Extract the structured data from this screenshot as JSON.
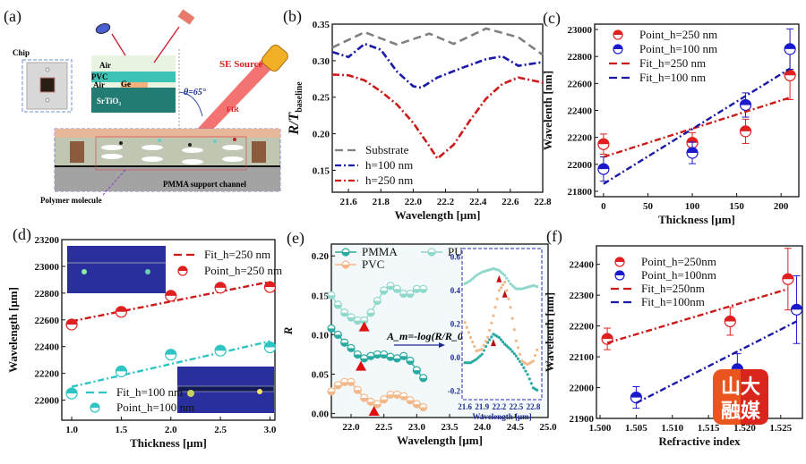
{
  "figure": {
    "panel_labels": [
      "(a)",
      "(b)",
      "(c)",
      "(d)",
      "(e)",
      "(f)"
    ],
    "watermark": {
      "line1": "山大",
      "line2": "融媒",
      "colors": {
        "orange": "#f07c1d",
        "red": "#d9251c"
      }
    }
  },
  "schematic": {
    "chip_label": "Chip",
    "layers": [
      "Air",
      "PVC",
      "Air",
      "Ge",
      "SrTiO₃"
    ],
    "source_label": "SE Source",
    "beam_label": "FIR",
    "angle_label": "θ=65°",
    "channel_label": "PMMA support channel",
    "molecule_label": "Polymer molecule"
  },
  "chart_data": [
    {
      "id": "b",
      "type": "line",
      "title": "",
      "xlabel": "Wavelength [μm]",
      "ylabel": "R/T_baseline",
      "ylabel_main": "R/T",
      "ylabel_sub": "baseline",
      "xlim": [
        21.5,
        22.8
      ],
      "ylim": [
        0.12,
        0.35
      ],
      "xticks": [
        "21.6",
        "21.8",
        "22.0",
        "22.2",
        "22.4",
        "22.6",
        "22.8"
      ],
      "yticks": [
        "0.15",
        "0.20",
        "0.25",
        "0.30",
        "0.35"
      ],
      "legend": "bottom-left",
      "series": [
        {
          "name": "Substrate",
          "color": "#808080",
          "dash": "dash",
          "x": [
            21.5,
            21.7,
            21.9,
            22.1,
            22.25,
            22.45,
            22.65,
            22.8
          ],
          "y": [
            0.318,
            0.339,
            0.322,
            0.337,
            0.323,
            0.344,
            0.332,
            0.308
          ]
        },
        {
          "name": "h=100 nm",
          "color": "#1a1aa6",
          "dash": "dashdot",
          "x": [
            21.5,
            21.6,
            21.7,
            21.8,
            21.9,
            22.0,
            22.05,
            22.15,
            22.3,
            22.45,
            22.55,
            22.65,
            22.8
          ],
          "y": [
            0.312,
            0.305,
            0.323,
            0.315,
            0.285,
            0.265,
            0.263,
            0.277,
            0.29,
            0.302,
            0.306,
            0.293,
            0.298
          ]
        },
        {
          "name": "h=250 nm",
          "color": "#cc1a1a",
          "dash": "dashdot",
          "x": [
            21.5,
            21.6,
            21.7,
            21.8,
            21.9,
            22.0,
            22.1,
            22.15,
            22.25,
            22.35,
            22.45,
            22.55,
            22.65,
            22.8
          ],
          "y": [
            0.281,
            0.28,
            0.273,
            0.258,
            0.24,
            0.215,
            0.183,
            0.166,
            0.185,
            0.218,
            0.248,
            0.268,
            0.277,
            0.27
          ]
        }
      ]
    },
    {
      "id": "c",
      "type": "scatter",
      "title": "",
      "xlabel": "Thickness [μm]",
      "ylabel": "Wavelenth [nm]",
      "xlim": [
        -10,
        220
      ],
      "ylim": [
        21760,
        23040
      ],
      "xticks": [
        "0",
        "50",
        "100",
        "150",
        "200"
      ],
      "yticks": [
        "21800",
        "22000",
        "22200",
        "22400",
        "22600",
        "22800",
        "23000"
      ],
      "legend": "top-left",
      "series": [
        {
          "name": "Point_h=250 nm",
          "kind": "points",
          "color": "#e02020",
          "x": [
            0,
            100,
            160,
            210
          ],
          "y": [
            22150,
            22160,
            22245,
            22660
          ],
          "err": [
            75,
            75,
            90,
            180
          ]
        },
        {
          "name": "Point_h=100 nm",
          "kind": "points",
          "color": "#1a1acc",
          "x": [
            0,
            100,
            160,
            210
          ],
          "y": [
            21965,
            22085,
            22440,
            22855
          ],
          "err": [
            90,
            80,
            90,
            150
          ]
        },
        {
          "name": "Fit_h=250 nm",
          "kind": "fit",
          "color": "#cc1a1a",
          "x": [
            0,
            210
          ],
          "y": [
            22055,
            22495
          ]
        },
        {
          "name": "Fit_h=100 nm",
          "kind": "fit",
          "color": "#1a1aa6",
          "x": [
            0,
            210
          ],
          "y": [
            21855,
            22710
          ]
        }
      ]
    },
    {
      "id": "d",
      "type": "scatter",
      "title": "",
      "xlabel": "Thickness [μm]",
      "ylabel": "Wavelength [μm]",
      "xlim": [
        0.9,
        3.05
      ],
      "ylim": [
        21850,
        23200
      ],
      "xticks": [
        "1.0",
        "1.5",
        "2.0",
        "2.5",
        "3.0"
      ],
      "yticks": [
        "22000",
        "22200",
        "22400",
        "22600",
        "22800",
        "23000",
        "23200"
      ],
      "legend": "top-right / bottom-left",
      "insets": [
        "field-map-top-left",
        "field-map-bottom-right"
      ],
      "series": [
        {
          "name": "Fit_h=250 nm",
          "kind": "fit",
          "color": "#cc1a1a",
          "x": [
            1.0,
            3.0
          ],
          "y": [
            22590,
            22885
          ]
        },
        {
          "name": "Point_h=250 nm",
          "kind": "points",
          "color": "#e02020",
          "x": [
            1.0,
            1.5,
            2.0,
            2.5,
            3.0
          ],
          "y": [
            22565,
            22660,
            22780,
            22840,
            22845
          ]
        },
        {
          "name": "Fit_h=100 nm",
          "kind": "fit",
          "color": "#2ec4c4",
          "x": [
            1.0,
            3.0
          ],
          "y": [
            22100,
            22440
          ]
        },
        {
          "name": "Point_h=100 nm",
          "kind": "points",
          "color": "#2ec4c4",
          "x": [
            1.0,
            1.5,
            2.0,
            2.5,
            3.0
          ],
          "y": [
            22050,
            22215,
            22340,
            22370,
            22395
          ]
        }
      ]
    },
    {
      "id": "e",
      "type": "line",
      "title": "",
      "xlabel": "Wavelength [μm]",
      "ylabel": "R",
      "xlim": [
        21.7,
        25.0
      ],
      "ylim": [
        -0.005,
        0.215
      ],
      "xticks": [
        "22.0",
        "22.5",
        "23.0",
        "23.5",
        "24.0",
        "24.5",
        "25.0"
      ],
      "yticks": [
        "0.00",
        "0.05",
        "0.10",
        "0.15",
        "0.20"
      ],
      "legend": "top-left",
      "annotation": "A_m=-log(R/R_0)",
      "series": [
        {
          "name": "PMMA",
          "color": "#2aaaa0",
          "x": [
            21.7,
            21.8,
            21.9,
            22.0,
            22.1,
            22.2,
            22.3,
            22.4,
            22.5,
            22.6,
            22.7,
            22.8,
            22.9,
            23.0,
            23.1
          ],
          "y": [
            0.108,
            0.1,
            0.09,
            0.083,
            0.075,
            0.07,
            0.073,
            0.075,
            0.075,
            0.072,
            0.07,
            0.073,
            0.067,
            0.055,
            0.045
          ]
        },
        {
          "name": "PU",
          "color": "#8fd8cc",
          "x": [
            21.7,
            21.8,
            21.9,
            22.0,
            22.1,
            22.2,
            22.3,
            22.4,
            22.5,
            22.6,
            22.7,
            22.8,
            22.9,
            23.0,
            23.1
          ],
          "y": [
            0.15,
            0.138,
            0.128,
            0.122,
            0.118,
            0.118,
            0.128,
            0.143,
            0.156,
            0.162,
            0.158,
            0.152,
            0.152,
            0.158,
            0.158
          ]
        },
        {
          "name": "PVC",
          "color": "#f2b88a",
          "x": [
            21.7,
            21.8,
            21.9,
            22.0,
            22.1,
            22.2,
            22.3,
            22.4,
            22.5,
            22.6,
            22.7,
            22.8,
            22.9,
            23.0,
            23.1
          ],
          "y": [
            0.028,
            0.036,
            0.04,
            0.04,
            0.03,
            0.02,
            0.015,
            0.012,
            0.018,
            0.024,
            0.024,
            0.022,
            0.017,
            0.012,
            0.008
          ]
        }
      ],
      "markers": [
        {
          "series": "PU",
          "x": 22.2,
          "y": 0.11
        },
        {
          "series": "PMMA",
          "x": 22.15,
          "y": 0.06
        },
        {
          "series": "PVC",
          "x": 22.35,
          "y": 0.003
        }
      ],
      "inset": {
        "xlabel": "Wavelength [μm]",
        "xlim": [
          21.55,
          22.95
        ],
        "ylim": [
          -0.25,
          0.65
        ],
        "xticks": [
          "21.6",
          "21.9",
          "22.2",
          "22.5",
          "22.8"
        ],
        "yticks": [
          "-0.2",
          "0.0",
          "0.2",
          "0.4",
          "0.6"
        ],
        "series": [
          {
            "name": "PMMA",
            "color": "#2aaaa0",
            "x": [
              21.6,
              21.7,
              21.8,
              21.9,
              22.0,
              22.1,
              22.2,
              22.3,
              22.4,
              22.5,
              22.6,
              22.7,
              22.8,
              22.9
            ],
            "y": [
              -0.03,
              -0.03,
              -0.01,
              0.02,
              0.09,
              0.14,
              0.12,
              0.08,
              0.05,
              0.01,
              -0.04,
              -0.1,
              -0.18,
              -0.2
            ]
          },
          {
            "name": "PU",
            "color": "#8fd8cc",
            "x": [
              21.6,
              21.7,
              21.8,
              21.9,
              22.0,
              22.1,
              22.2,
              22.3,
              22.4,
              22.5,
              22.6,
              22.7,
              22.8,
              22.9
            ],
            "y": [
              0.44,
              0.46,
              0.49,
              0.51,
              0.52,
              0.53,
              0.52,
              0.49,
              0.44,
              0.41,
              0.41,
              0.42,
              0.43,
              0.42
            ]
          },
          {
            "name": "PVC",
            "color": "#f2b88a",
            "x": [
              21.6,
              21.7,
              21.8,
              21.9,
              22.0,
              22.1,
              22.2,
              22.3,
              22.4,
              22.5,
              22.6,
              22.7,
              22.8,
              22.9
            ],
            "y": [
              0.21,
              0.12,
              0.04,
              0.05,
              0.12,
              0.25,
              0.4,
              0.45,
              0.3,
              0.1,
              -0.02,
              -0.04,
              -0.02,
              0.08
            ]
          }
        ],
        "markers": [
          {
            "x": 22.2,
            "y": 0.47
          },
          {
            "x": 22.3,
            "y": 0.38
          },
          {
            "x": 22.1,
            "y": 0.09
          }
        ]
      }
    },
    {
      "id": "f",
      "type": "scatter",
      "title": "",
      "xlabel": "Refractive index",
      "ylabel": "Wavelenth [nm]",
      "xlim": [
        1.4995,
        1.528
      ],
      "ylim": [
        21900,
        22460
      ],
      "xticks": [
        "1.500",
        "1.505",
        "1.510",
        "1.515",
        "1.520",
        "1.525"
      ],
      "yticks": [
        "21900",
        "22000",
        "22100",
        "22200",
        "22300",
        "22400"
      ],
      "legend": "top-left",
      "series": [
        {
          "name": "Point_h=250nm",
          "kind": "points",
          "color": "#e02020",
          "x": [
            1.501,
            1.518,
            1.526
          ],
          "y": [
            22158,
            22215,
            22352
          ],
          "err": [
            35,
            45,
            100
          ]
        },
        {
          "name": "Point_h=100nm",
          "kind": "points",
          "color": "#1a1acc",
          "x": [
            1.505,
            1.519,
            1.5272
          ],
          "y": [
            21968,
            22060,
            22253
          ],
          "err": [
            35,
            50,
            110
          ]
        },
        {
          "name": "Fit_h=250nm",
          "kind": "fit",
          "color": "#cc1a1a",
          "x": [
            1.501,
            1.526
          ],
          "y": [
            22145,
            22320
          ]
        },
        {
          "name": "Fit_h=100nm",
          "kind": "fit",
          "color": "#1a1aa6",
          "x": [
            1.505,
            1.5272
          ],
          "y": [
            21950,
            22215
          ]
        }
      ]
    }
  ]
}
